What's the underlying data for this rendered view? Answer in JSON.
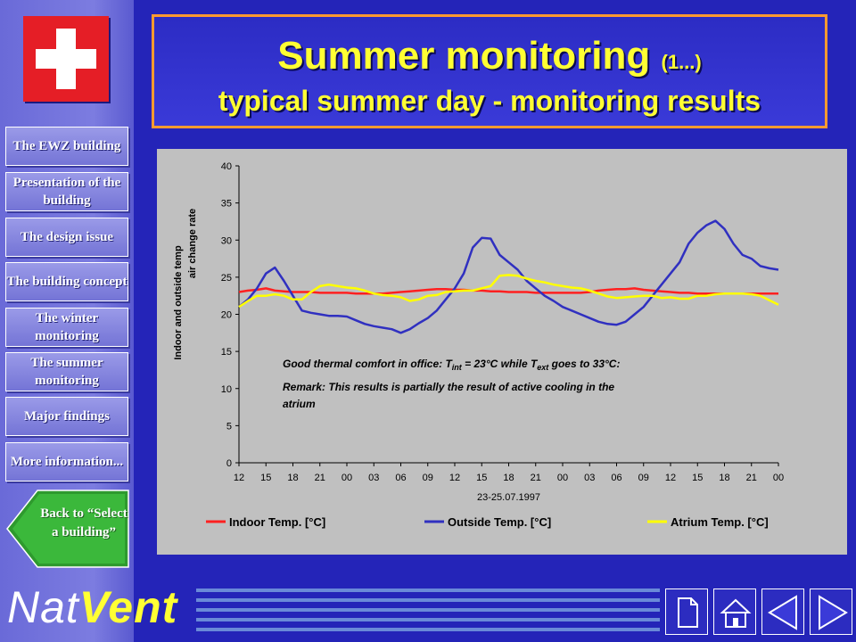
{
  "title": {
    "main": "Summer monitoring",
    "part": "(1...)",
    "subtitle": "typical summer day - monitoring results"
  },
  "nav": {
    "items": [
      "The EWZ building",
      "Presentation of the building",
      "The design issue",
      "The building concept",
      "The winter monitoring",
      "The summer monitoring",
      "Major findings",
      "More information..."
    ],
    "back": "Back to “Select a building”"
  },
  "footer": {
    "logo_nat": "Nat",
    "logo_vent": "Vent"
  },
  "icons": {
    "flag": "swiss-flag-icon",
    "back": "back-arrow-icon",
    "document": "document-icon",
    "home": "home-icon",
    "previous": "previous-triangle-icon",
    "next": "next-triangle-icon"
  },
  "colors": {
    "background": "#2424b8",
    "title": "#ffff33",
    "title_border": "#ff9a30",
    "indoor": "#ff2020",
    "outside": "#3030c0",
    "atrium": "#ffff00"
  },
  "chart_data": {
    "type": "line",
    "ylabel": "Indoor and outside temp air change rate",
    "xlabel": "23-25.07.1997",
    "ylim": [
      0,
      40
    ],
    "yticks": [
      0,
      5,
      10,
      15,
      20,
      25,
      30,
      35,
      40
    ],
    "xtick_labels": [
      "12",
      "15",
      "18",
      "21",
      "00",
      "03",
      "06",
      "09",
      "12",
      "15",
      "18",
      "21",
      "00",
      "03",
      "06",
      "09",
      "12",
      "15",
      "18",
      "21",
      "00"
    ],
    "annotations": [
      "Good thermal comfort in office: T",
      "int",
      " = 23°C while T",
      "ext",
      " goes to 33°C:",
      "Remark: This results is partially the result of active cooling in the",
      "atrium"
    ],
    "legend": {
      "position": "bottom"
    },
    "x_hours": [
      0,
      1,
      2,
      3,
      4,
      5,
      6,
      7,
      8,
      9,
      10,
      11,
      12,
      13,
      14,
      15,
      16,
      17,
      18,
      19,
      20,
      21,
      22,
      23,
      24,
      25,
      26,
      27,
      28,
      29,
      30,
      31,
      32,
      33,
      34,
      35,
      36,
      37,
      38,
      39,
      40,
      41,
      42,
      43,
      44,
      45,
      46,
      47,
      48,
      49,
      50,
      51,
      52,
      53,
      54,
      55,
      56,
      57,
      58,
      59,
      60
    ],
    "series": [
      {
        "name": "Indoor Temp. [°C]",
        "color": "#ff2020",
        "values": [
          23,
          23.2,
          23.3,
          23.5,
          23.2,
          23.1,
          23,
          23,
          23,
          22.9,
          22.9,
          22.9,
          22.9,
          22.8,
          22.8,
          22.8,
          22.8,
          22.9,
          23,
          23.1,
          23.2,
          23.3,
          23.4,
          23.4,
          23.3,
          23.3,
          23.2,
          23.2,
          23.1,
          23.1,
          23,
          23,
          23,
          22.9,
          22.9,
          22.9,
          22.9,
          22.9,
          22.9,
          23,
          23.2,
          23.3,
          23.4,
          23.4,
          23.5,
          23.3,
          23.2,
          23.1,
          23,
          22.9,
          22.9,
          22.8,
          22.8,
          22.8,
          22.8,
          22.8,
          22.8,
          22.8,
          22.8,
          22.8,
          22.8
        ]
      },
      {
        "name": "Outside Temp. [°C]",
        "color": "#3030c0",
        "values": [
          21,
          22,
          23.5,
          25.5,
          26.3,
          24.5,
          22.5,
          20.5,
          20.2,
          20,
          19.8,
          19.8,
          19.7,
          19.2,
          18.7,
          18.4,
          18.2,
          18,
          17.5,
          18,
          18.8,
          19.5,
          20.5,
          22,
          23.5,
          25.5,
          29,
          30.3,
          30.2,
          28,
          27,
          26,
          24.5,
          23.5,
          22.5,
          21.8,
          21,
          20.5,
          20,
          19.5,
          19,
          18.7,
          18.6,
          19,
          20,
          21,
          22.5,
          24,
          25.5,
          27,
          29.5,
          31,
          32,
          32.6,
          31.5,
          29.5,
          28,
          27.5,
          26.5,
          26.2,
          26
        ]
      },
      {
        "name": "Atrium Temp. [°C]",
        "color": "#ffff00",
        "values": [
          21,
          21.8,
          22.5,
          22.5,
          22.7,
          22.5,
          22,
          22,
          23,
          23.8,
          24,
          23.8,
          23.6,
          23.5,
          23.2,
          22.8,
          22.6,
          22.5,
          22.3,
          21.8,
          22,
          22.5,
          22.6,
          23,
          23.1,
          23.2,
          23.2,
          23.5,
          23.8,
          25.2,
          25.3,
          25.2,
          24.8,
          24.5,
          24.3,
          24,
          23.8,
          23.6,
          23.5,
          23.2,
          22.8,
          22.4,
          22.2,
          22.3,
          22.4,
          22.5,
          22.5,
          22.2,
          22.3,
          22.1,
          22.1,
          22.5,
          22.5,
          22.7,
          22.8,
          22.8,
          22.8,
          22.7,
          22.5,
          21.9,
          21.3
        ]
      }
    ]
  }
}
